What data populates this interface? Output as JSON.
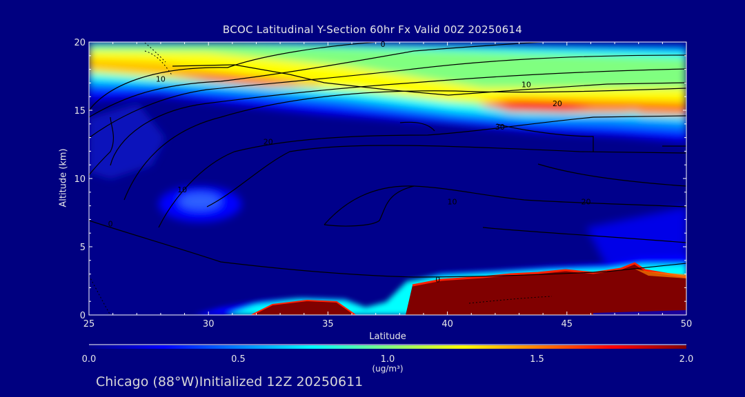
{
  "chart_data": {
    "type": "heatmap",
    "title": "BCOC Latitudinal Y-Section 60hr  Fx Valid 00Z 20250614",
    "xlabel": "Latitude",
    "ylabel": "Altitude (km)",
    "xlim": [
      25,
      50
    ],
    "ylim": [
      0,
      20
    ],
    "x_ticks": [
      "25",
      "30",
      "35",
      "40",
      "45",
      "50"
    ],
    "y_ticks": [
      "0",
      "5",
      "10",
      "15",
      "20"
    ],
    "colorbar": {
      "min": 0.0,
      "max": 2.0,
      "ticks": [
        "0.0",
        "0.5",
        "1.0",
        "1.5",
        "2.0"
      ],
      "unit": "(ug/m³)",
      "colors": [
        "#00008b",
        "#0000ff",
        "#0080ff",
        "#00ffff",
        "#80ff80",
        "#ffff00",
        "#ff8000",
        "#ff0000",
        "#800000"
      ]
    },
    "concentration_features": [
      {
        "name": "stratospheric band",
        "lat_range": [
          25,
          50
        ],
        "alt_range_km": [
          14,
          19.5
        ],
        "peak_ug_m3": 2.0
      },
      {
        "name": "surface layer south",
        "lat_range": [
          32,
          37
        ],
        "alt_range_km": [
          0,
          1.1
        ],
        "peak_ug_m3": 2.0
      },
      {
        "name": "surface layer north",
        "lat_range": [
          38,
          50
        ],
        "alt_range_km": [
          0,
          3.2
        ],
        "peak_ug_m3": 2.0
      },
      {
        "name": "mid-level blob",
        "lat_range": [
          28.5,
          31.5
        ],
        "alt_range_km": [
          7.5,
          9.5
        ],
        "peak_ug_m3": 0.45
      }
    ],
    "contour_labels": [
      "0",
      "10",
      "10",
      "20",
      "20",
      "30",
      "10",
      "10",
      "20",
      "0",
      "0"
    ]
  },
  "footer": {
    "location": "Chicago (88°W)",
    "init_text": "Initialized 12Z 20250611"
  }
}
